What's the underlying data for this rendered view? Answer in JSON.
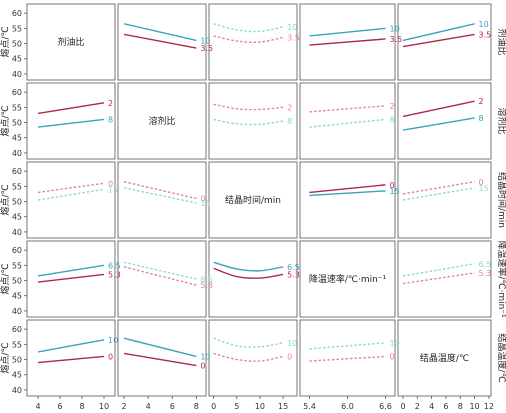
{
  "chart_data": {
    "type": "line",
    "layout": "scatter-matrix",
    "rows": 5,
    "cols": 5,
    "row_axis_labels": [
      "熔点/℃",
      "熔点/℃",
      "熔点/℃",
      "熔点/℃",
      "熔点/℃"
    ],
    "right_labels": [
      "剂油比",
      "溶剂比",
      "结晶时间/min",
      "降温速率/℃·min⁻¹",
      "结晶温度/℃"
    ],
    "diagonal_labels": [
      "剂油比",
      "溶剂比",
      "结晶时间/min",
      "降温速率/℃·min⁻¹",
      "结晶温度/℃"
    ],
    "y_ticks": [
      "60",
      "55",
      "50",
      "45",
      "40"
    ],
    "ylim": [
      38,
      63
    ],
    "x_axes": [
      {
        "range": [
          3,
          11
        ],
        "ticks": [
          "4",
          "6",
          "8",
          "10"
        ]
      },
      {
        "range": [
          1.5,
          8.8
        ],
        "ticks": [
          "2",
          "4",
          "6",
          "8"
        ]
      },
      {
        "range": [
          -1,
          18
        ],
        "ticks": [
          "0",
          "5",
          "10",
          "15"
        ]
      },
      {
        "range": [
          5.25,
          6.75
        ],
        "ticks": [
          "5.4",
          "6.0",
          "6.6"
        ]
      },
      {
        "range": [
          -0.7,
          12.3
        ],
        "ticks": [
          "0",
          "2",
          "4",
          "6",
          "8",
          "10",
          "12"
        ]
      }
    ],
    "colors": {
      "teal": "#3aa3bc",
      "crimson": "#b0274b",
      "teal_dash": "#8fd8d5",
      "crimson_dash": "#e0869a"
    },
    "panels": [
      {
        "row": 0,
        "col": 1,
        "series": [
          {
            "name": "10",
            "color": "teal",
            "dashed": false,
            "x": [
              2,
              8
            ],
            "y": [
              56.5,
              51
            ]
          },
          {
            "name": "3.5",
            "color": "crimson",
            "dashed": false,
            "x": [
              2,
              8
            ],
            "y": [
              53,
              48.5
            ]
          }
        ]
      },
      {
        "row": 0,
        "col": 2,
        "series": [
          {
            "name": "10",
            "color": "teal_dash",
            "dashed": true,
            "x": [
              0,
              5,
              10,
              15
            ],
            "y": [
              56.5,
              54.5,
              54,
              55.5
            ]
          },
          {
            "name": "3.5",
            "color": "crimson_dash",
            "dashed": true,
            "x": [
              0,
              5,
              10,
              15
            ],
            "y": [
              52.5,
              50.8,
              50.5,
              52
            ]
          }
        ]
      },
      {
        "row": 0,
        "col": 3,
        "series": [
          {
            "name": "10",
            "color": "teal",
            "dashed": false,
            "x": [
              5.4,
              6.6
            ],
            "y": [
              52.5,
              55
            ]
          },
          {
            "name": "3.5",
            "color": "crimson",
            "dashed": false,
            "x": [
              5.4,
              6.6
            ],
            "y": [
              49.5,
              51.5
            ]
          }
        ]
      },
      {
        "row": 0,
        "col": 4,
        "series": [
          {
            "name": "10",
            "color": "teal",
            "dashed": false,
            "x": [
              0,
              10
            ],
            "y": [
              51,
              56.5
            ]
          },
          {
            "name": "3.5",
            "color": "crimson",
            "dashed": false,
            "x": [
              0,
              10
            ],
            "y": [
              49,
              53
            ]
          }
        ]
      },
      {
        "row": 1,
        "col": 0,
        "series": [
          {
            "name": "2",
            "color": "crimson",
            "dashed": false,
            "x": [
              4,
              10
            ],
            "y": [
              53,
              56.5
            ]
          },
          {
            "name": "8",
            "color": "teal",
            "dashed": false,
            "x": [
              4,
              10
            ],
            "y": [
              48.5,
              51
            ]
          }
        ]
      },
      {
        "row": 1,
        "col": 2,
        "series": [
          {
            "name": "2",
            "color": "crimson_dash",
            "dashed": true,
            "x": [
              0,
              5,
              10,
              15
            ],
            "y": [
              56,
              54.5,
              54.3,
              55
            ]
          },
          {
            "name": "8",
            "color": "teal_dash",
            "dashed": true,
            "x": [
              0,
              5,
              10,
              15
            ],
            "y": [
              51,
              49.6,
              49.4,
              50.5
            ]
          }
        ]
      },
      {
        "row": 1,
        "col": 3,
        "series": [
          {
            "name": "2",
            "color": "crimson_dash",
            "dashed": true,
            "x": [
              5.4,
              6.6
            ],
            "y": [
              53.5,
              55.5
            ]
          },
          {
            "name": "8",
            "color": "teal_dash",
            "dashed": true,
            "x": [
              5.4,
              6.6
            ],
            "y": [
              48.5,
              51
            ]
          }
        ]
      },
      {
        "row": 1,
        "col": 4,
        "series": [
          {
            "name": "2",
            "color": "crimson",
            "dashed": false,
            "x": [
              0,
              10
            ],
            "y": [
              52,
              57
            ]
          },
          {
            "name": "8",
            "color": "teal",
            "dashed": false,
            "x": [
              0,
              10
            ],
            "y": [
              47.5,
              51.5
            ]
          }
        ]
      },
      {
        "row": 2,
        "col": 0,
        "series": [
          {
            "name": "0",
            "color": "crimson_dash",
            "dashed": true,
            "x": [
              4,
              10
            ],
            "y": [
              53,
              56
            ]
          },
          {
            "name": "15",
            "color": "teal_dash",
            "dashed": true,
            "x": [
              4,
              10
            ],
            "y": [
              50.5,
              54
            ]
          }
        ]
      },
      {
        "row": 2,
        "col": 1,
        "series": [
          {
            "name": "0",
            "color": "crimson_dash",
            "dashed": true,
            "x": [
              2,
              8
            ],
            "y": [
              56.5,
              51
            ]
          },
          {
            "name": "15",
            "color": "teal_dash",
            "dashed": true,
            "x": [
              2,
              8
            ],
            "y": [
              54.5,
              49.5
            ]
          }
        ]
      },
      {
        "row": 2,
        "col": 3,
        "series": [
          {
            "name": "0",
            "color": "crimson",
            "dashed": false,
            "x": [
              5.4,
              6.6
            ],
            "y": [
              53,
              55.5
            ]
          },
          {
            "name": "15",
            "color": "teal",
            "dashed": false,
            "x": [
              5.4,
              6.6
            ],
            "y": [
              52,
              53.5
            ]
          }
        ]
      },
      {
        "row": 2,
        "col": 4,
        "series": [
          {
            "name": "0",
            "color": "crimson_dash",
            "dashed": true,
            "x": [
              0,
              10
            ],
            "y": [
              52.5,
              56.5
            ]
          },
          {
            "name": "15",
            "color": "teal_dash",
            "dashed": true,
            "x": [
              0,
              10
            ],
            "y": [
              50.5,
              54.5
            ]
          }
        ]
      },
      {
        "row": 3,
        "col": 0,
        "series": [
          {
            "name": "6.5",
            "color": "teal",
            "dashed": false,
            "x": [
              4,
              10
            ],
            "y": [
              51.5,
              55
            ]
          },
          {
            "name": "5.3",
            "color": "crimson",
            "dashed": false,
            "x": [
              4,
              10
            ],
            "y": [
              49.5,
              52
            ]
          }
        ]
      },
      {
        "row": 3,
        "col": 1,
        "series": [
          {
            "name": "6.5",
            "color": "teal_dash",
            "dashed": true,
            "x": [
              2,
              8
            ],
            "y": [
              56,
              50.5
            ]
          },
          {
            "name": "5.3",
            "color": "crimson_dash",
            "dashed": true,
            "x": [
              2,
              8
            ],
            "y": [
              54.5,
              48.5
            ]
          }
        ]
      },
      {
        "row": 3,
        "col": 2,
        "series": [
          {
            "name": "6.5",
            "color": "teal",
            "dashed": false,
            "x": [
              0,
              5,
              10,
              15
            ],
            "y": [
              56,
              53.8,
              53.2,
              54.5
            ]
          },
          {
            "name": "5.3",
            "color": "crimson",
            "dashed": false,
            "x": [
              0,
              5,
              10,
              15
            ],
            "y": [
              54,
              51.3,
              50.8,
              52
            ]
          }
        ]
      },
      {
        "row": 3,
        "col": 4,
        "series": [
          {
            "name": "6.5",
            "color": "teal_dash",
            "dashed": true,
            "x": [
              0,
              10
            ],
            "y": [
              51.5,
              55.5
            ]
          },
          {
            "name": "5.3",
            "color": "crimson_dash",
            "dashed": true,
            "x": [
              0,
              10
            ],
            "y": [
              49,
              52.5
            ]
          }
        ]
      },
      {
        "row": 4,
        "col": 0,
        "series": [
          {
            "name": "10",
            "color": "teal",
            "dashed": false,
            "x": [
              4,
              10
            ],
            "y": [
              52.5,
              56.5
            ]
          },
          {
            "name": "0",
            "color": "crimson",
            "dashed": false,
            "x": [
              4,
              10
            ],
            "y": [
              49,
              51
            ]
          }
        ]
      },
      {
        "row": 4,
        "col": 1,
        "series": [
          {
            "name": "10",
            "color": "teal",
            "dashed": false,
            "x": [
              2,
              8
            ],
            "y": [
              57,
              51
            ]
          },
          {
            "name": "0",
            "color": "crimson",
            "dashed": false,
            "x": [
              2,
              8
            ],
            "y": [
              52,
              48
            ]
          }
        ]
      },
      {
        "row": 4,
        "col": 2,
        "series": [
          {
            "name": "10",
            "color": "teal_dash",
            "dashed": true,
            "x": [
              0,
              5,
              10,
              15
            ],
            "y": [
              57,
              54.5,
              54.2,
              55.5
            ]
          },
          {
            "name": "0",
            "color": "crimson_dash",
            "dashed": true,
            "x": [
              0,
              5,
              10,
              15
            ],
            "y": [
              52,
              50,
              49.5,
              51
            ]
          }
        ]
      },
      {
        "row": 4,
        "col": 3,
        "series": [
          {
            "name": "10",
            "color": "teal_dash",
            "dashed": true,
            "x": [
              5.4,
              6.6
            ],
            "y": [
              53.5,
              55.5
            ]
          },
          {
            "name": "0",
            "color": "crimson_dash",
            "dashed": true,
            "x": [
              5.4,
              6.6
            ],
            "y": [
              49.5,
              51
            ]
          }
        ]
      }
    ]
  }
}
